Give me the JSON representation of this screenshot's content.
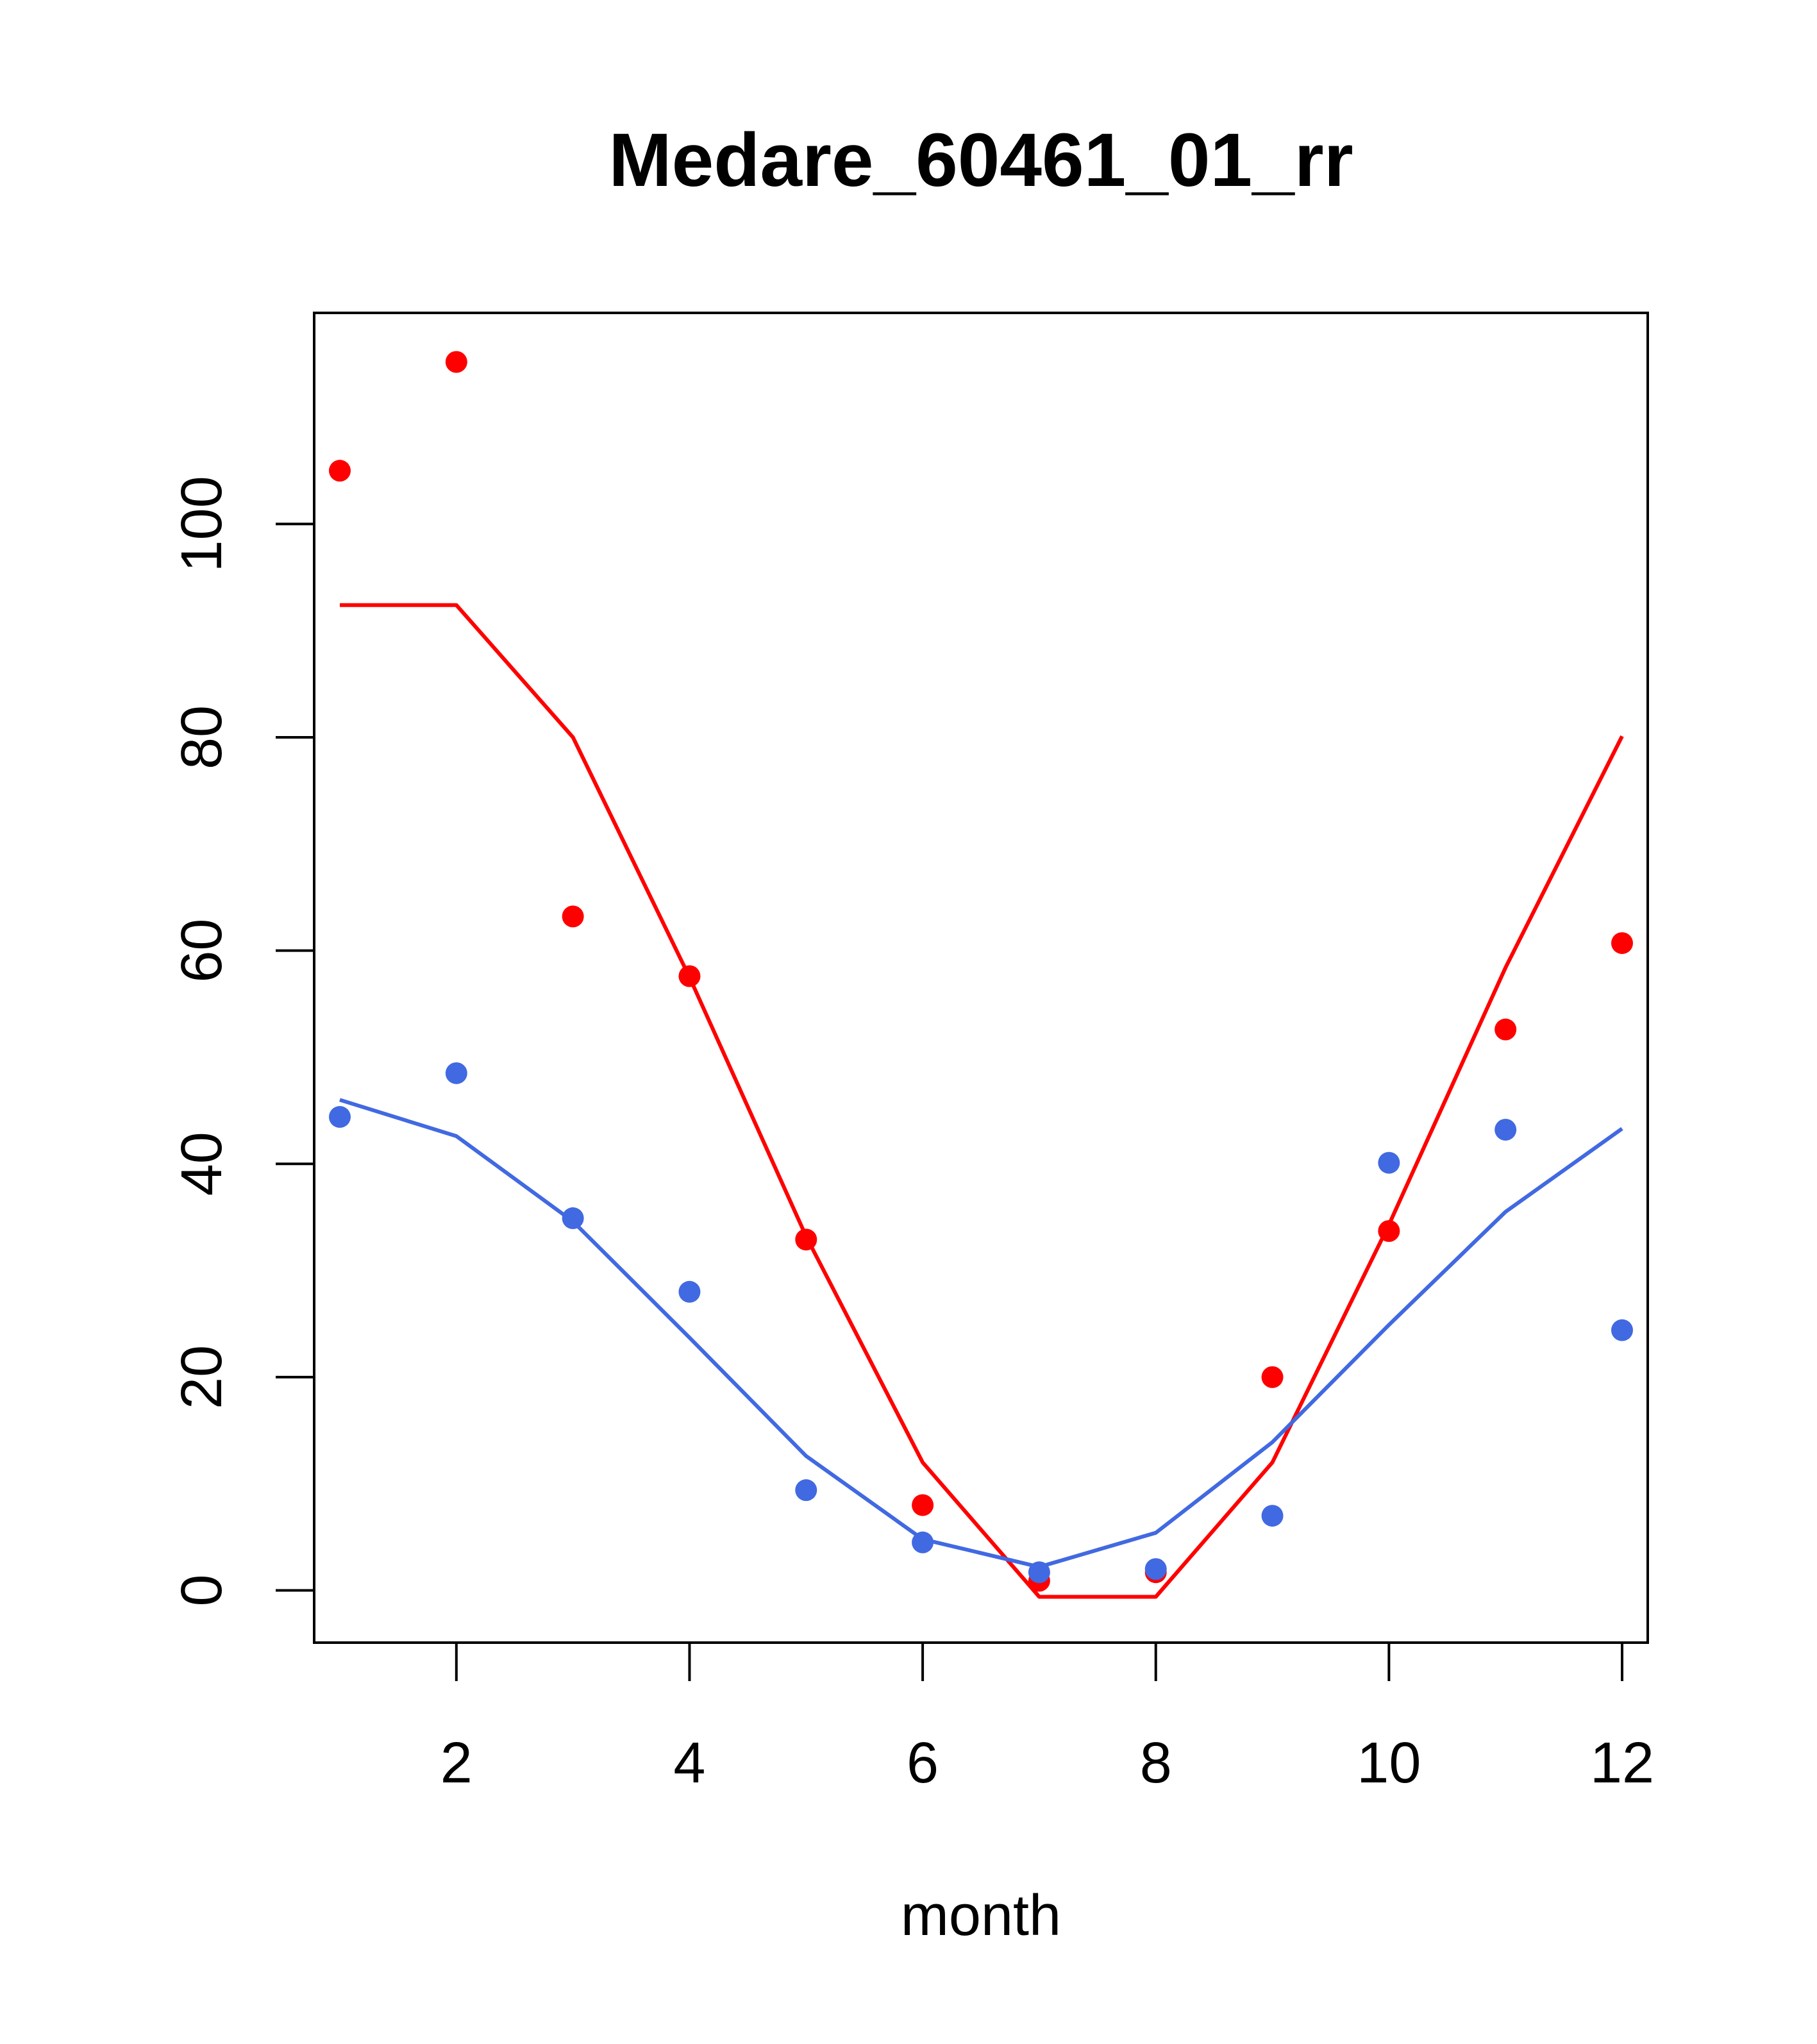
{
  "chart_data": {
    "type": "scatter",
    "title": "Medare_60461_01_rr",
    "xlabel": "month",
    "ylabel": "",
    "xlim": [
      0.78,
      12.22
    ],
    "ylim": [
      -4.9,
      119.8
    ],
    "xticks": [
      2,
      4,
      6,
      8,
      10,
      12
    ],
    "xtick_labels": [
      "2",
      "4",
      "6",
      "8",
      "10",
      "12"
    ],
    "yticks": [
      0,
      20,
      40,
      60,
      80,
      100
    ],
    "ytick_labels": [
      "0",
      "20",
      "40",
      "60",
      "80",
      "100"
    ],
    "grid": false,
    "x": [
      1,
      2,
      3,
      4,
      5,
      6,
      7,
      8,
      9,
      10,
      11,
      12
    ],
    "series": [
      {
        "name": "red points",
        "kind": "points",
        "color": "#ff0000",
        "values": [
          105.0,
          115.2,
          63.2,
          57.6,
          32.9,
          8.0,
          0.9,
          1.7,
          20.0,
          33.7,
          52.6,
          60.7
        ]
      },
      {
        "name": "red line",
        "kind": "line",
        "color": "#ff0000",
        "values": [
          92.4,
          92.4,
          80.0,
          57.5,
          33.2,
          12.0,
          -0.6,
          -0.6,
          12.0,
          34.3,
          58.4,
          80.1
        ]
      },
      {
        "name": "blue points",
        "kind": "points",
        "color": "#4169e1",
        "values": [
          44.4,
          48.5,
          34.9,
          28.0,
          9.4,
          4.5,
          1.7,
          2.0,
          7.0,
          40.1,
          43.2,
          24.4
        ]
      },
      {
        "name": "blue line",
        "kind": "line",
        "color": "#4169e1",
        "values": [
          46.0,
          42.6,
          34.6,
          23.7,
          12.6,
          4.8,
          2.2,
          5.4,
          13.9,
          24.9,
          35.5,
          43.3
        ]
      }
    ]
  }
}
